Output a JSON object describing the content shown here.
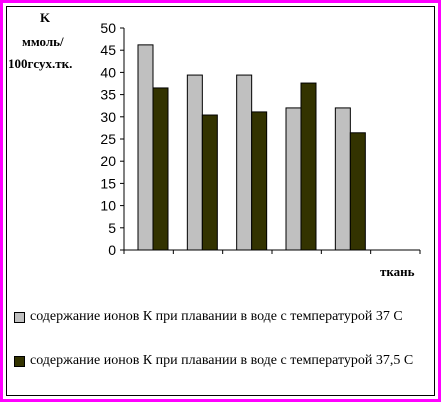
{
  "chart_data": {
    "type": "bar",
    "ylabel_lines": [
      "K",
      "ммоль/",
      "100гсух.тк."
    ],
    "xlabel": "ткань",
    "ylim": [
      0,
      50
    ],
    "yticks": [
      0,
      5,
      10,
      15,
      20,
      25,
      30,
      35,
      40,
      45,
      50
    ],
    "categories": [
      "",
      "",
      "",
      "",
      "",
      ""
    ],
    "series": [
      {
        "name": "содержание ионов К при плавании в воде с температурой 37 С",
        "color": "#c0c0c0",
        "values": [
          46.2,
          39.4,
          39.4,
          32.0,
          32.0,
          null
        ]
      },
      {
        "name": "содержание ионов К при плавании в воде с температурой 37,5 С",
        "color": "#333300",
        "values": [
          36.5,
          30.4,
          31.1,
          37.6,
          26.4,
          null
        ]
      }
    ],
    "grid": false,
    "legend_position": "bottom"
  },
  "colors": {
    "frame": "#ff00ff"
  }
}
